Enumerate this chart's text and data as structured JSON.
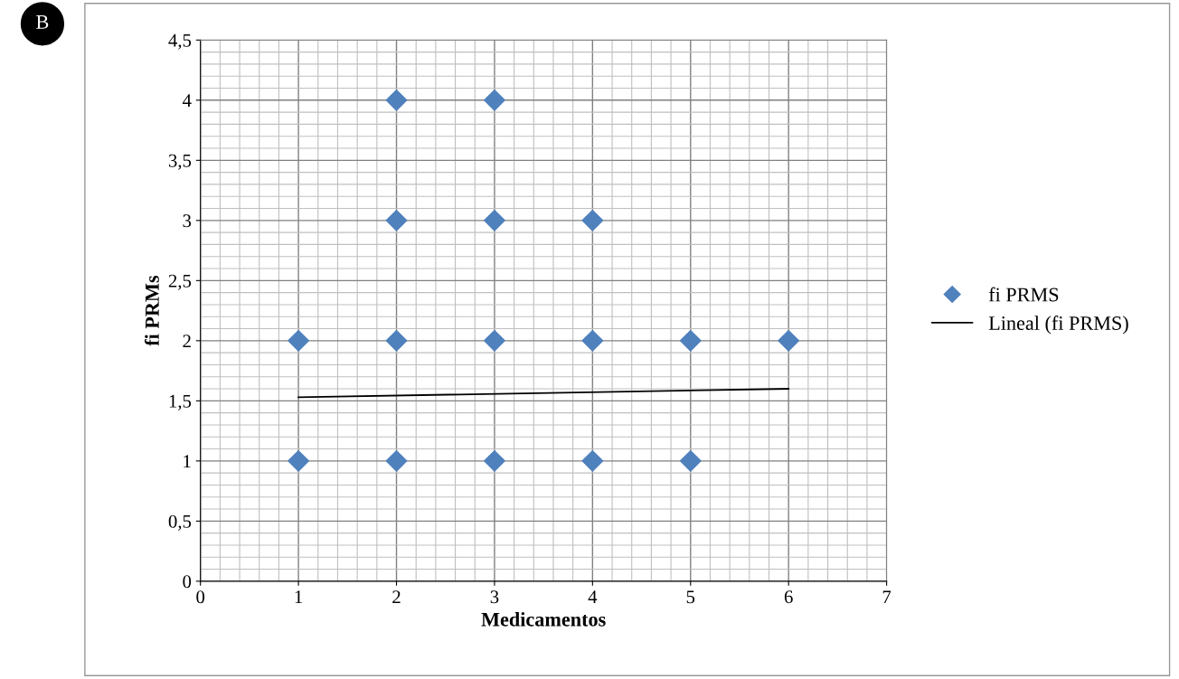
{
  "chart_data": {
    "type": "scatter",
    "xlabel": "Medicamentos",
    "ylabel": "fi PRMs",
    "annotations": [
      "B"
    ],
    "series": [
      {
        "name": "fi PRMS",
        "color": "#4f81bd",
        "marker": "diamond",
        "x": [
          1,
          1,
          2,
          2,
          2,
          2,
          3,
          3,
          3,
          3,
          4,
          4,
          4,
          5,
          5,
          6
        ],
        "values": [
          2,
          1,
          4,
          3,
          2,
          1,
          4,
          3,
          2,
          1,
          3,
          2,
          1,
          2,
          1,
          2
        ]
      },
      {
        "name": "Lineal (fi PRMS)",
        "type": "line",
        "color": "#000000",
        "marker": "none",
        "line_style": "solid",
        "x": [
          1,
          6
        ],
        "values": [
          1.53,
          1.6
        ]
      }
    ],
    "xlim": [
      0,
      7
    ],
    "xticks": [
      0,
      1,
      2,
      3,
      4,
      5,
      6,
      7
    ],
    "ylim": [
      0,
      4.5
    ],
    "yticks": [
      0,
      {
        "value": 0.5,
        "label": "0,5"
      },
      1,
      {
        "value": 1.5,
        "label": "1,5"
      },
      2,
      {
        "value": 2.5,
        "label": "2,5"
      },
      3,
      {
        "value": 3.5,
        "label": "3,5"
      },
      4,
      {
        "value": 4.5,
        "label": "4,5"
      }
    ],
    "grid": true,
    "legend": "right"
  }
}
